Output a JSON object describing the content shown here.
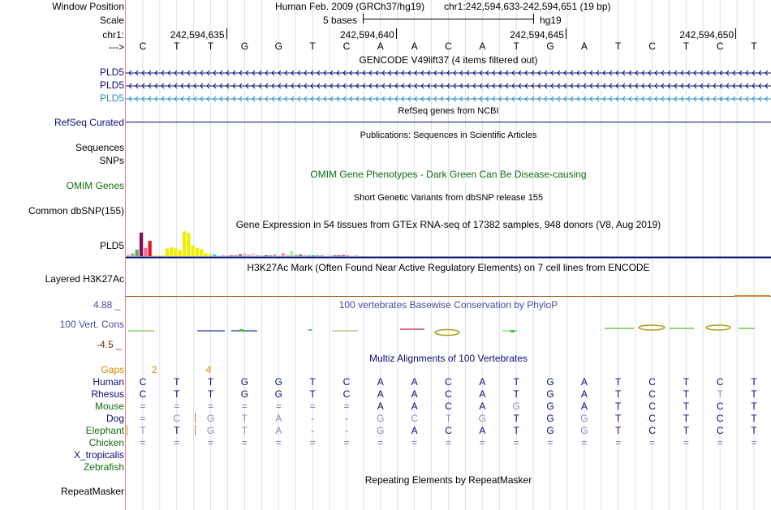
{
  "colors": {
    "track_navy": "#0c0c78",
    "gencode_blue": "#0c0c78",
    "gencode_cyan": "#2a8fbf",
    "omim_green": "#0f6e0f",
    "phylop_blue": "#4a4a9a",
    "phylop_bottom": "#7a3000",
    "gaps_orange": "#d58a00",
    "grid": "#c8d8f0",
    "red_rule": "#f08080"
  },
  "position": {
    "label_window": "Window Position",
    "label_scale": "Scale",
    "label_chr": "chr1:",
    "label_arrow": "--->",
    "assembly": "Human Feb. 2009 (GRCh37/hg19)",
    "range": "chr1:242,594,633-242,594,651 (19 bp)",
    "scale_text": "5 bases",
    "scale_db": "hg19",
    "ticks": [
      "242,594,635",
      "242,594,640",
      "242,594,645",
      "242,594,650"
    ]
  },
  "sequence": [
    "C",
    "T",
    "T",
    "G",
    "G",
    "T",
    "C",
    "A",
    "A",
    "C",
    "A",
    "T",
    "G",
    "A",
    "T",
    "C",
    "T",
    "C",
    "T"
  ],
  "gencode": {
    "title": "GENCODE V49lift37 (4 items filtered out)",
    "genes": [
      {
        "name": "PLD5",
        "color": "#0c0c78"
      },
      {
        "name": "PLD5",
        "color": "#0c0c78"
      },
      {
        "name": "PLD5",
        "color": "#2a8fbf"
      }
    ]
  },
  "refseq": {
    "title": "RefSeq genes from NCBI",
    "label": "RefSeq Curated"
  },
  "publications": {
    "title": "Publications: Sequences in Scientific Articles",
    "label1": "Sequences",
    "label2": "SNPs"
  },
  "omim": {
    "title": "OMIM Gene Phenotypes - Dark Green Can Be Disease-causing",
    "label": "OMIM Genes"
  },
  "dbsnp": {
    "title": "Short Genetic Variants from dbSNP release 155",
    "label": "Common dbSNP(155)"
  },
  "gtex": {
    "title": "Gene Expression in 54 tissues from GTEx RNA-seq of 17382 samples, 948 donors (V8, Aug 2019)",
    "label": "PLD5",
    "bars": [
      {
        "v": 0.05,
        "c": "#ff9966"
      },
      {
        "v": 0.12,
        "c": "#aaaaaa"
      },
      {
        "v": 0.28,
        "c": "#66aa66"
      },
      {
        "v": 1.0,
        "c": "#880e4f"
      },
      {
        "v": 0.35,
        "c": "#ff66aa"
      },
      {
        "v": 0.65,
        "c": "#e31a1c"
      },
      {
        "v": 0.02,
        "c": "#eeee00"
      },
      {
        "v": 0.03,
        "c": "#eeee00"
      },
      {
        "v": 0.02,
        "c": "#eeee00"
      },
      {
        "v": 0.33,
        "c": "#eeee00"
      },
      {
        "v": 0.38,
        "c": "#eeee00"
      },
      {
        "v": 0.33,
        "c": "#eeee00"
      },
      {
        "v": 0.26,
        "c": "#eeee00"
      },
      {
        "v": 1.05,
        "c": "#eeee00"
      },
      {
        "v": 0.98,
        "c": "#eeee00"
      },
      {
        "v": 0.45,
        "c": "#eeee00"
      },
      {
        "v": 0.35,
        "c": "#eeee00"
      },
      {
        "v": 0.3,
        "c": "#eeee00"
      },
      {
        "v": 0.12,
        "c": "#eeee00"
      },
      {
        "v": 0.08,
        "c": "#eeee00"
      },
      {
        "v": 0.08,
        "c": "#33ccff"
      },
      {
        "v": 0.03,
        "c": "#cccccc"
      },
      {
        "v": 0.05,
        "c": "#aabbdd"
      },
      {
        "v": 0.04,
        "c": "#ffaa66"
      },
      {
        "v": 0.03,
        "c": "#666666"
      },
      {
        "v": 0.05,
        "c": "#cc9999"
      },
      {
        "v": 0.09,
        "c": "#888888"
      },
      {
        "v": 0.12,
        "c": "#ddbbcc"
      },
      {
        "v": 0.06,
        "c": "#ccaaaa"
      },
      {
        "v": 0.13,
        "c": "#eeccdd"
      },
      {
        "v": 0.04,
        "c": "#aaaaaa"
      },
      {
        "v": 0.03,
        "c": "#bbbbbb"
      },
      {
        "v": 0.02,
        "c": "#333399"
      },
      {
        "v": 0.04,
        "c": "#999999"
      },
      {
        "v": 0.08,
        "c": "#cc99cc"
      },
      {
        "v": 0.06,
        "c": "#dddddd"
      },
      {
        "v": 0.14,
        "c": "#ff99bb"
      },
      {
        "v": 0.04,
        "c": "#aaaaaa"
      },
      {
        "v": 0.22,
        "c": "#aaeeaa"
      },
      {
        "v": 0.05,
        "c": "#999999"
      },
      {
        "v": 0.08,
        "c": "#888888"
      },
      {
        "v": 0.04,
        "c": "#ff88aa"
      },
      {
        "v": 0.04,
        "c": "#55aadd"
      },
      {
        "v": 0.02,
        "c": "#558855"
      },
      {
        "v": 0.05,
        "c": "#88bb88"
      },
      {
        "v": 0.04,
        "c": "#ff6699"
      },
      {
        "v": 0.12,
        "c": "#eeeeee"
      },
      {
        "v": 0.05,
        "c": "#cccccc"
      },
      {
        "v": 0.04,
        "c": "#996633"
      },
      {
        "v": 0.03,
        "c": "#cc3333"
      },
      {
        "v": 0.06,
        "c": "#aa66cc"
      },
      {
        "v": 0.03,
        "c": "#cc8844"
      },
      {
        "v": 0.04,
        "c": "#dddddd"
      },
      {
        "v": 0.02,
        "c": "#bbbbbb"
      }
    ]
  },
  "h3k27ac": {
    "title": "H3K27Ac Mark (Often Found Near Active Regulatory Elements) on 7 cell lines from ENCODE",
    "label": "Layered H3K27Ac"
  },
  "phylop": {
    "title": "100 vertebrates Basewise Conservation by PhyloP",
    "label": "100 Vert. Cons",
    "ymax": "4.88 _",
    "ymin": "-4.5 _"
  },
  "multiz": {
    "title": "Multiz Alignments of 100 Vertebrates",
    "gaps_label": "Gaps",
    "gap_marks": [
      {
        "text": "2",
        "pos": 1
      },
      {
        "text": "4",
        "pos": 2
      }
    ],
    "species": [
      {
        "name": "Human",
        "color": "#0c0c78",
        "seq": [
          "C",
          "T",
          "T",
          "G",
          "G",
          "T",
          "C",
          "A",
          "A",
          "C",
          "A",
          "T",
          "G",
          "A",
          "T",
          "C",
          "T",
          "C",
          "T"
        ]
      },
      {
        "name": "Rhesus",
        "color": "#0c0c78",
        "seq": [
          "C",
          "T",
          "T",
          "G",
          "G",
          "T",
          "C",
          "A",
          "A",
          "C",
          "A",
          "T",
          "G",
          "A",
          "T",
          "C",
          "T",
          "T",
          "T"
        ]
      },
      {
        "name": "Mouse",
        "color": "#0f6e0f",
        "seq": [
          "=",
          "=",
          "=",
          "=",
          "=",
          "=",
          "=",
          "A",
          "A",
          "C",
          "A",
          "G",
          "G",
          "A",
          "T",
          "C",
          "T",
          "C",
          "T"
        ]
      },
      {
        "name": "Dog",
        "color": "#0c0c78",
        "seq": [
          "=",
          "C",
          "G",
          "T",
          "A",
          "-",
          "-",
          "G",
          "C",
          "T",
          "G",
          "T",
          "G",
          "G",
          "T",
          "C",
          "T",
          "C",
          "T"
        ]
      },
      {
        "name": "Elephant",
        "color": "#0f6e0f",
        "seq": [
          "T",
          "T",
          "G",
          "T",
          "A",
          "-",
          "-",
          "G",
          "A",
          "C",
          "A",
          "T",
          "G",
          "G",
          "T",
          "C",
          "T",
          "C",
          "T"
        ]
      },
      {
        "name": "Chicken",
        "color": "#0f6e0f",
        "seq": [
          "=",
          "=",
          "=",
          "=",
          "=",
          "=",
          "=",
          "=",
          "=",
          "=",
          "=",
          "=",
          "=",
          "=",
          "=",
          "=",
          "=",
          "=",
          "="
        ]
      },
      {
        "name": "X_tropicalis",
        "color": "#0c0c78",
        "seq": []
      },
      {
        "name": "Zebrafish",
        "color": "#0f6e0f",
        "seq": []
      }
    ]
  },
  "repeatmasker": {
    "title": "Repeating Elements by RepeatMasker",
    "label": "RepeatMasker"
  }
}
